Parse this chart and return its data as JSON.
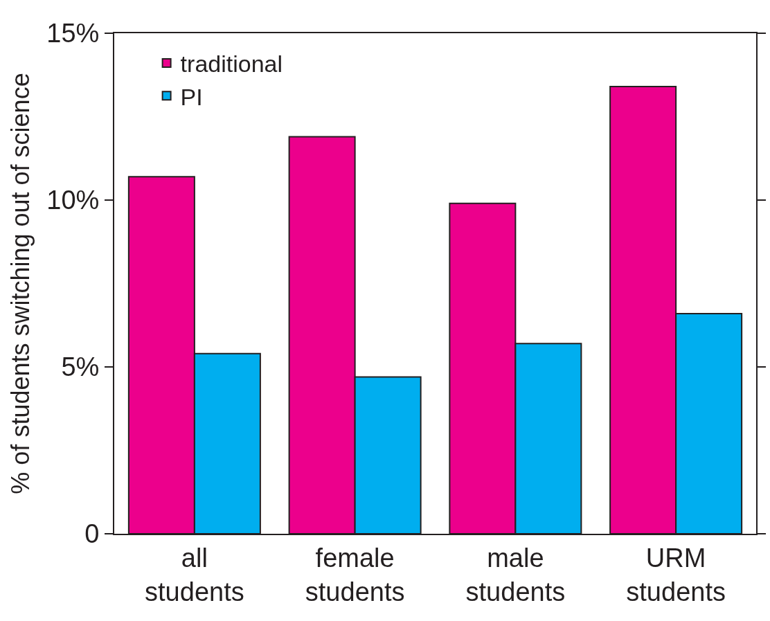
{
  "chart_data": {
    "type": "bar",
    "ylabel": "% of students switching out of science",
    "categories": [
      "all\nstudents",
      "female\nstudents",
      "male\nstudents",
      "URM\nstudents"
    ],
    "series": [
      {
        "name": "traditional",
        "color": "#ec008c",
        "values": [
          10.7,
          11.9,
          9.9,
          13.4
        ]
      },
      {
        "name": "PI",
        "color": "#00aeef",
        "values": [
          5.4,
          4.7,
          5.7,
          6.6
        ]
      }
    ],
    "ylim": [
      0,
      15
    ],
    "yticks": [
      {
        "value": 0,
        "label": "0"
      },
      {
        "value": 5,
        "label": "5%"
      },
      {
        "value": 10,
        "label": "10%"
      },
      {
        "value": 15,
        "label": "15%"
      }
    ],
    "grid": false,
    "legend": "top left"
  }
}
